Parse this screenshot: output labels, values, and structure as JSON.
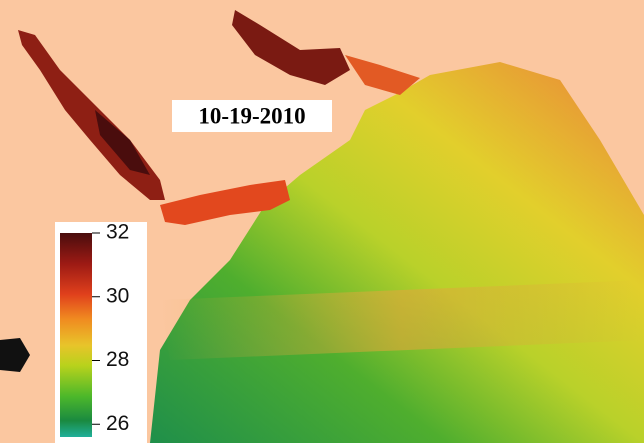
{
  "map": {
    "date": "10-19-2010",
    "colorbar": {
      "lim": [
        25.6,
        32
      ],
      "ticks": [
        32,
        30,
        28,
        26
      ]
    }
  }
}
